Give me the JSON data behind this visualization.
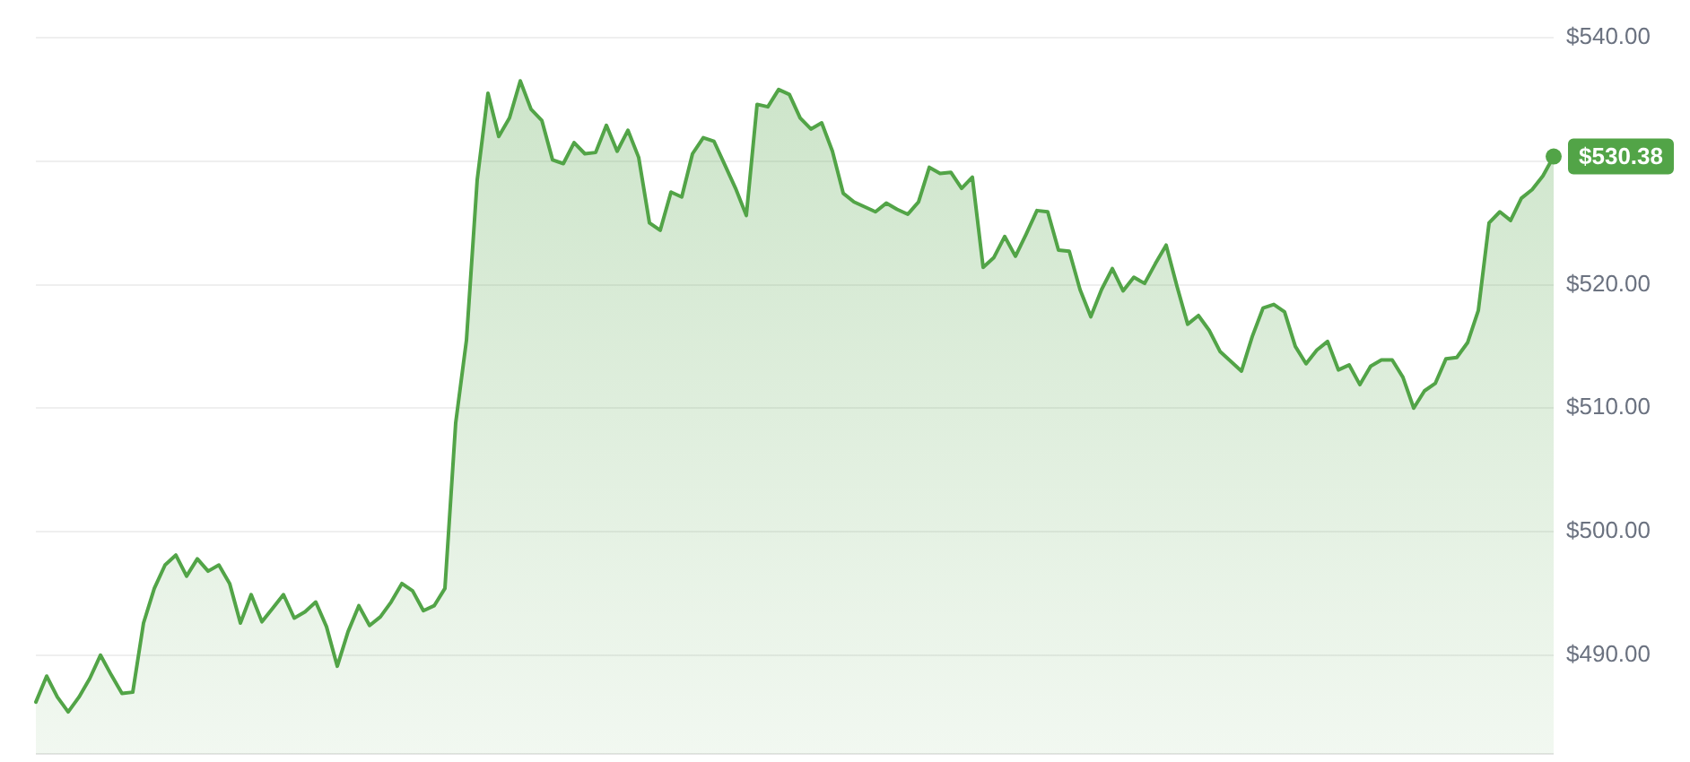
{
  "chart_data": {
    "type": "area",
    "color": "#52a447",
    "categories": [
      null,
      null,
      null,
      null,
      null,
      null,
      null,
      null,
      null,
      null,
      null,
      null,
      null,
      null,
      null,
      null,
      null,
      null,
      null,
      null,
      null,
      null,
      null,
      null,
      null,
      null,
      null,
      null,
      null,
      null,
      null,
      null,
      null,
      null,
      null,
      null,
      null,
      null,
      null,
      null,
      null,
      null,
      null,
      null,
      null,
      null,
      null,
      null,
      null,
      null,
      null,
      null,
      null,
      null,
      null,
      null,
      null,
      null,
      null,
      null,
      null,
      null,
      null,
      null,
      null,
      null,
      null,
      null,
      null,
      null,
      null,
      null,
      null,
      null,
      null,
      null,
      null,
      null,
      null,
      null,
      null,
      null,
      null,
      null,
      null,
      null,
      null,
      null,
      null,
      null,
      null,
      null,
      null,
      null,
      null,
      null,
      null,
      null,
      null,
      null,
      null,
      null,
      null,
      null,
      null,
      null,
      null,
      null,
      null,
      null,
      null,
      null,
      null,
      null,
      null,
      null,
      null,
      null,
      null,
      null,
      null,
      null,
      null,
      null,
      null,
      null,
      null,
      null,
      null,
      null,
      null,
      null,
      null,
      null,
      null,
      null,
      null,
      null,
      null,
      null,
      null,
      null
    ],
    "values": [
      486.2,
      488.3,
      486.6,
      485.4,
      486.6,
      488.1,
      490.0,
      488.4,
      486.9,
      487.0,
      492.6,
      495.4,
      497.3,
      498.1,
      496.4,
      497.8,
      496.8,
      497.3,
      495.8,
      492.6,
      494.9,
      492.7,
      493.8,
      494.9,
      493.0,
      493.5,
      494.3,
      492.3,
      489.1,
      491.9,
      494.0,
      492.4,
      493.1,
      494.3,
      495.8,
      495.2,
      493.6,
      494.0,
      495.4,
      508.8,
      515.5,
      528.5,
      535.5,
      532.0,
      533.5,
      536.5,
      534.2,
      533.3,
      530.1,
      529.8,
      531.5,
      530.6,
      530.7,
      532.9,
      530.8,
      532.5,
      530.3,
      525.0,
      524.4,
      527.5,
      527.1,
      530.6,
      531.9,
      531.6,
      529.7,
      527.8,
      525.6,
      534.6,
      534.4,
      535.8,
      535.4,
      533.5,
      532.6,
      533.1,
      530.8,
      527.4,
      526.7,
      526.3,
      525.9,
      526.6,
      526.1,
      525.7,
      526.7,
      529.5,
      529.0,
      529.1,
      527.8,
      528.7,
      521.4,
      522.2,
      523.9,
      522.3,
      524.1,
      526.0,
      525.9,
      522.8,
      522.7,
      519.6,
      517.4,
      519.6,
      521.3,
      519.5,
      520.6,
      520.1,
      521.7,
      523.2,
      519.9,
      516.8,
      517.5,
      516.3,
      514.6,
      513.8,
      513.0,
      515.8,
      518.1,
      518.4,
      517.8,
      515.0,
      513.6,
      514.7,
      515.4,
      513.1,
      513.5,
      511.9,
      513.4,
      513.9,
      513.9,
      512.5,
      510.0,
      511.4,
      512.0,
      514.0,
      514.1,
      515.3,
      517.9,
      525.0,
      525.9,
      525.2,
      527.0,
      527.7,
      528.8,
      530.38
    ],
    "value_labels": [
      null,
      null,
      null,
      null,
      null,
      null,
      null,
      null,
      null,
      null,
      null,
      null,
      null,
      null,
      null,
      null,
      null,
      null,
      null,
      null,
      null,
      null,
      null,
      null,
      null,
      null,
      null,
      null,
      null,
      null,
      null,
      null,
      null,
      null,
      null,
      null,
      null,
      null,
      null,
      null,
      null,
      null,
      null,
      null,
      null,
      null,
      null,
      null,
      null,
      null,
      null,
      null,
      null,
      null,
      null,
      null,
      null,
      null,
      null,
      null,
      null,
      null,
      null,
      null,
      null,
      null,
      null,
      null,
      null,
      null,
      null,
      null,
      null,
      null,
      null,
      null,
      null,
      null,
      null,
      null,
      null,
      null,
      null,
      null,
      null,
      null,
      null,
      null,
      null,
      null,
      null,
      null,
      null,
      null,
      null,
      null,
      null,
      null,
      null,
      null,
      null,
      null,
      null,
      null,
      null,
      null,
      null,
      null,
      null,
      null,
      null,
      null,
      null,
      null,
      null,
      null,
      null,
      null,
      null,
      null,
      null,
      null,
      null,
      null,
      null,
      null,
      null,
      null,
      null,
      null,
      null,
      null,
      null,
      null,
      null,
      null,
      null,
      null,
      null,
      null,
      null,
      "$530.38"
    ],
    "ylim": [
      482,
      540
    ],
    "yticks": [
      {
        "value": 490,
        "label": "$490.00"
      },
      {
        "value": 500,
        "label": "$500.00"
      },
      {
        "value": 510,
        "label": "$510.00"
      },
      {
        "value": 520,
        "label": "$520.00"
      },
      {
        "value": 530,
        "label": null
      },
      {
        "value": 540,
        "label": "$540.00"
      }
    ],
    "grid": "y",
    "tick_labels": "y"
  }
}
